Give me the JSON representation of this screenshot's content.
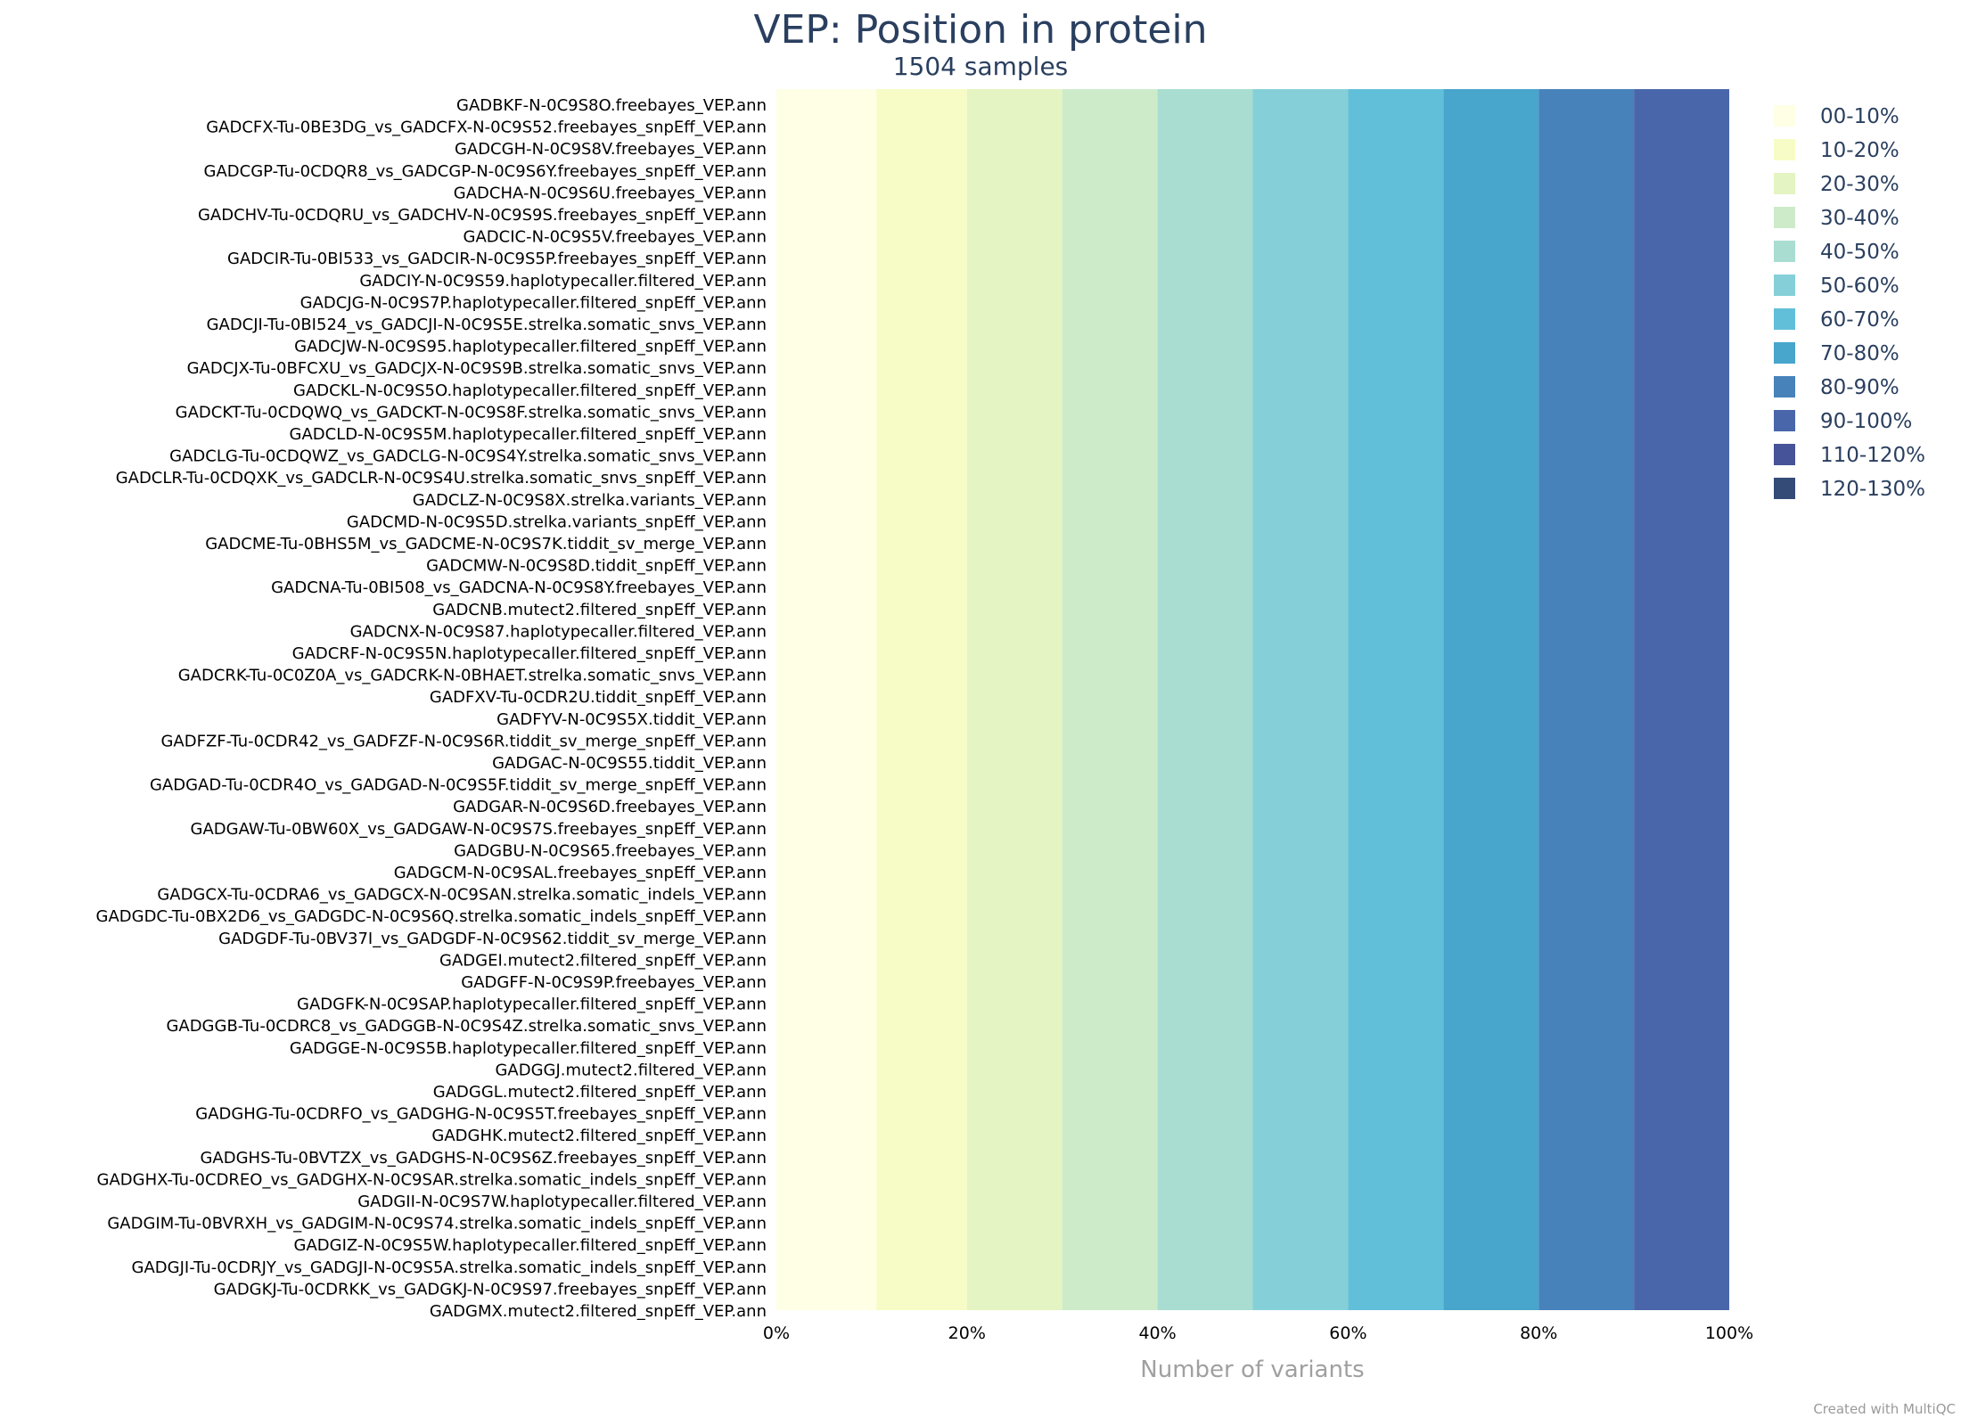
{
  "chart_data": {
    "type": "bar",
    "orientation": "horizontal",
    "stacked": "percent",
    "title": "VEP: Position in protein",
    "subtitle": "1504 samples",
    "xlabel": "Number of variants",
    "x_ticks": [
      "0%",
      "20%",
      "40%",
      "60%",
      "80%",
      "100%"
    ],
    "xlim": [
      0,
      100
    ],
    "legend_position": "right",
    "categories": [
      "GADBKF-N-0C9S8O.freebayes_VEP.ann",
      "GADCFX-Tu-0BE3DG_vs_GADCFX-N-0C9S52.freebayes_snpEff_VEP.ann",
      "GADCGH-N-0C9S8V.freebayes_VEP.ann",
      "GADCGP-Tu-0CDQR8_vs_GADCGP-N-0C9S6Y.freebayes_snpEff_VEP.ann",
      "GADCHA-N-0C9S6U.freebayes_VEP.ann",
      "GADCHV-Tu-0CDQRU_vs_GADCHV-N-0C9S9S.freebayes_snpEff_VEP.ann",
      "GADCIC-N-0C9S5V.freebayes_VEP.ann",
      "GADCIR-Tu-0BI533_vs_GADCIR-N-0C9S5P.freebayes_snpEff_VEP.ann",
      "GADCIY-N-0C9S59.haplotypecaller.filtered_VEP.ann",
      "GADCJG-N-0C9S7P.haplotypecaller.filtered_snpEff_VEP.ann",
      "GADCJI-Tu-0BI524_vs_GADCJI-N-0C9S5E.strelka.somatic_snvs_VEP.ann",
      "GADCJW-N-0C9S95.haplotypecaller.filtered_snpEff_VEP.ann",
      "GADCJX-Tu-0BFCXU_vs_GADCJX-N-0C9S9B.strelka.somatic_snvs_VEP.ann",
      "GADCKL-N-0C9S5O.haplotypecaller.filtered_snpEff_VEP.ann",
      "GADCKT-Tu-0CDQWQ_vs_GADCKT-N-0C9S8F.strelka.somatic_snvs_VEP.ann",
      "GADCLD-N-0C9S5M.haplotypecaller.filtered_snpEff_VEP.ann",
      "GADCLG-Tu-0CDQWZ_vs_GADCLG-N-0C9S4Y.strelka.somatic_snvs_VEP.ann",
      "GADCLR-Tu-0CDQXK_vs_GADCLR-N-0C9S4U.strelka.somatic_snvs_snpEff_VEP.ann",
      "GADCLZ-N-0C9S8X.strelka.variants_VEP.ann",
      "GADCMD-N-0C9S5D.strelka.variants_snpEff_VEP.ann",
      "GADCME-Tu-0BHS5M_vs_GADCME-N-0C9S7K.tiddit_sv_merge_VEP.ann",
      "GADCMW-N-0C9S8D.tiddit_snpEff_VEP.ann",
      "GADCNA-Tu-0BI508_vs_GADCNA-N-0C9S8Y.freebayes_VEP.ann",
      "GADCNB.mutect2.filtered_snpEff_VEP.ann",
      "GADCNX-N-0C9S87.haplotypecaller.filtered_VEP.ann",
      "GADCRF-N-0C9S5N.haplotypecaller.filtered_snpEff_VEP.ann",
      "GADCRK-Tu-0C0Z0A_vs_GADCRK-N-0BHAET.strelka.somatic_snvs_VEP.ann",
      "GADFXV-Tu-0CDR2U.tiddit_snpEff_VEP.ann",
      "GADFYV-N-0C9S5X.tiddit_VEP.ann",
      "GADFZF-Tu-0CDR42_vs_GADFZF-N-0C9S6R.tiddit_sv_merge_snpEff_VEP.ann",
      "GADGAC-N-0C9S55.tiddit_VEP.ann",
      "GADGAD-Tu-0CDR4O_vs_GADGAD-N-0C9S5F.tiddit_sv_merge_snpEff_VEP.ann",
      "GADGAR-N-0C9S6D.freebayes_VEP.ann",
      "GADGAW-Tu-0BW60X_vs_GADGAW-N-0C9S7S.freebayes_snpEff_VEP.ann",
      "GADGBU-N-0C9S65.freebayes_VEP.ann",
      "GADGCM-N-0C9SAL.freebayes_snpEff_VEP.ann",
      "GADGCX-Tu-0CDRA6_vs_GADGCX-N-0C9SAN.strelka.somatic_indels_VEP.ann",
      "GADGDC-Tu-0BX2D6_vs_GADGDC-N-0C9S6Q.strelka.somatic_indels_snpEff_VEP.ann",
      "GADGDF-Tu-0BV37I_vs_GADGDF-N-0C9S62.tiddit_sv_merge_VEP.ann",
      "GADGEI.mutect2.filtered_snpEff_VEP.ann",
      "GADGFF-N-0C9S9P.freebayes_VEP.ann",
      "GADGFK-N-0C9SAP.haplotypecaller.filtered_snpEff_VEP.ann",
      "GADGGB-Tu-0CDRC8_vs_GADGGB-N-0C9S4Z.strelka.somatic_snvs_VEP.ann",
      "GADGGE-N-0C9S5B.haplotypecaller.filtered_snpEff_VEP.ann",
      "GADGGJ.mutect2.filtered_VEP.ann",
      "GADGGL.mutect2.filtered_snpEff_VEP.ann",
      "GADGHG-Tu-0CDRFO_vs_GADGHG-N-0C9S5T.freebayes_snpEff_VEP.ann",
      "GADGHK.mutect2.filtered_snpEff_VEP.ann",
      "GADGHS-Tu-0BVTZX_vs_GADGHS-N-0C9S6Z.freebayes_snpEff_VEP.ann",
      "GADGHX-Tu-0CDREO_vs_GADGHX-N-0C9SAR.strelka.somatic_indels_snpEff_VEP.ann",
      "GADGII-N-0C9S7W.haplotypecaller.filtered_VEP.ann",
      "GADGIM-Tu-0BVRXH_vs_GADGIM-N-0C9S74.strelka.somatic_indels_snpEff_VEP.ann",
      "GADGIZ-N-0C9S5W.haplotypecaller.filtered_snpEff_VEP.ann",
      "GADGJI-Tu-0CDRJY_vs_GADGJI-N-0C9S5A.strelka.somatic_indels_snpEff_VEP.ann",
      "GADGKJ-Tu-0CDRKK_vs_GADGKJ-N-0C9S97.freebayes_snpEff_VEP.ann",
      "GADGMX.mutect2.filtered_snpEff_VEP.ann"
    ],
    "series": [
      {
        "name": "00-10%",
        "color": "#ffffe5",
        "value": 10.5
      },
      {
        "name": "10-20%",
        "color": "#f7fcc6",
        "value": 9.5
      },
      {
        "name": "20-30%",
        "color": "#e4f4c2",
        "value": 10
      },
      {
        "name": "30-40%",
        "color": "#cdebc9",
        "value": 10
      },
      {
        "name": "40-50%",
        "color": "#a9ddd1",
        "value": 10
      },
      {
        "name": "50-60%",
        "color": "#85d0d8",
        "value": 10
      },
      {
        "name": "60-70%",
        "color": "#62bfd9",
        "value": 10
      },
      {
        "name": "70-80%",
        "color": "#48a5cc",
        "value": 10
      },
      {
        "name": "80-90%",
        "color": "#4782bb",
        "value": 10
      },
      {
        "name": "90-100%",
        "color": "#4a66ab",
        "value": 10
      },
      {
        "name": "110-120%",
        "color": "#465398",
        "value": 0
      },
      {
        "name": "120-130%",
        "color": "#344b78",
        "value": 0
      }
    ]
  },
  "footer": {
    "credit": "Created with MultiQC"
  }
}
